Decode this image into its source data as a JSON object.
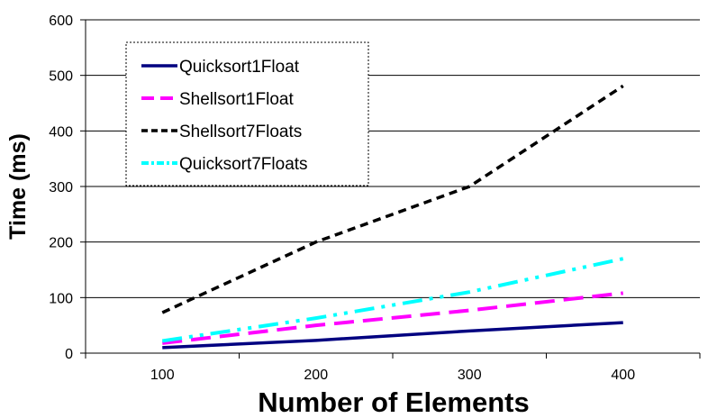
{
  "chart_data": {
    "type": "line",
    "title": "",
    "xlabel": "Number of Elements",
    "ylabel": "Time (ms)",
    "categories": [
      "100",
      "200",
      "300",
      "400"
    ],
    "x": [
      100,
      200,
      300,
      400
    ],
    "ylim": [
      0,
      600
    ],
    "yticks": [
      "0",
      "100",
      "200",
      "300",
      "400",
      "500",
      "600"
    ],
    "grid": true,
    "legend_position": "top-left",
    "series": [
      {
        "name": "Quicksort1Float",
        "color": "#000080",
        "style": "solid",
        "values": [
          10,
          23,
          40,
          55
        ]
      },
      {
        "name": "Shellsort1Float",
        "color": "#ff00ff",
        "style": "dashed",
        "values": [
          18,
          50,
          77,
          108
        ]
      },
      {
        "name": "Shellsort7Floats",
        "color": "#000000",
        "style": "dotted-dashed",
        "values": [
          73,
          200,
          300,
          481
        ]
      },
      {
        "name": "Quicksort7Floats",
        "color": "#00ffff",
        "style": "dash-dot-dot",
        "values": [
          22,
          63,
          110,
          170
        ]
      }
    ]
  }
}
